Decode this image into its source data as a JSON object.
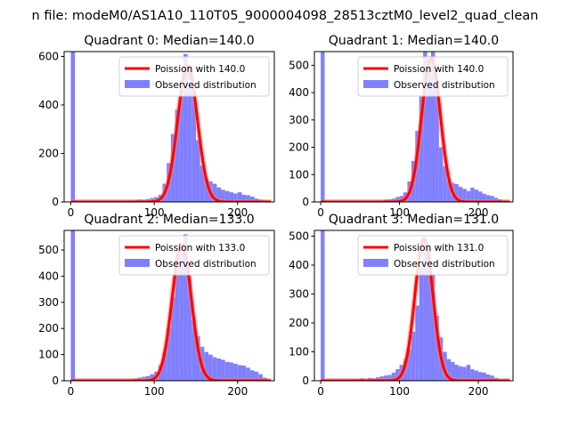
{
  "figure": {
    "suptitle": "n file: modeM0/AS1A10_110T05_9000004098_28513cztM0_level2_quad_clean"
  },
  "colors": {
    "bars": "#8080ff",
    "fit": "#ff0000",
    "fit_halo": "#f08080",
    "axes": "#000000",
    "background": "#ffffff"
  },
  "chart_data": [
    {
      "type": "bar",
      "title": "Quadrant 0: Median=140.0",
      "median": 140.0,
      "xlim": [
        -8,
        244
      ],
      "ylim": [
        0,
        620
      ],
      "xticks": [
        0,
        100,
        200
      ],
      "yticks": [
        0,
        200,
        400,
        600
      ],
      "bin_width": 5,
      "bins": [
        [
          0,
          620
        ],
        [
          70,
          4
        ],
        [
          75,
          6
        ],
        [
          80,
          10
        ],
        [
          85,
          8
        ],
        [
          90,
          12
        ],
        [
          95,
          16
        ],
        [
          100,
          20
        ],
        [
          105,
          30
        ],
        [
          110,
          75
        ],
        [
          115,
          160
        ],
        [
          120,
          280
        ],
        [
          125,
          380
        ],
        [
          130,
          440
        ],
        [
          135,
          610
        ],
        [
          140,
          565
        ],
        [
          145,
          450
        ],
        [
          150,
          255
        ],
        [
          155,
          150
        ],
        [
          160,
          95
        ],
        [
          165,
          85
        ],
        [
          170,
          75
        ],
        [
          175,
          60
        ],
        [
          180,
          50
        ],
        [
          185,
          45
        ],
        [
          190,
          40
        ],
        [
          195,
          35
        ],
        [
          200,
          40
        ],
        [
          205,
          30
        ],
        [
          210,
          28
        ],
        [
          215,
          22
        ],
        [
          220,
          14
        ],
        [
          225,
          10
        ]
      ],
      "fit_peak": 560,
      "fit_x_range": [
        0,
        240
      ],
      "legend": {
        "position": "upper right",
        "entries": [
          "Poission with 140.0",
          "Observed distribution"
        ]
      }
    },
    {
      "type": "bar",
      "title": "Quadrant 1: Median=140.0",
      "median": 140.0,
      "xlim": [
        -8,
        244
      ],
      "ylim": [
        0,
        550
      ],
      "xticks": [
        0,
        100,
        200
      ],
      "yticks": [
        0,
        100,
        200,
        300,
        400,
        500
      ],
      "bin_width": 5,
      "bins": [
        [
          0,
          550
        ],
        [
          70,
          3
        ],
        [
          75,
          5
        ],
        [
          80,
          8
        ],
        [
          85,
          10
        ],
        [
          90,
          12
        ],
        [
          95,
          18
        ],
        [
          100,
          22
        ],
        [
          105,
          35
        ],
        [
          110,
          75
        ],
        [
          115,
          150
        ],
        [
          120,
          260
        ],
        [
          125,
          390
        ],
        [
          130,
          560
        ],
        [
          135,
          505
        ],
        [
          140,
          560
        ],
        [
          145,
          420
        ],
        [
          150,
          200
        ],
        [
          155,
          130
        ],
        [
          160,
          80
        ],
        [
          165,
          70
        ],
        [
          170,
          65
        ],
        [
          175,
          55
        ],
        [
          180,
          48
        ],
        [
          185,
          40
        ],
        [
          190,
          52
        ],
        [
          195,
          45
        ],
        [
          200,
          38
        ],
        [
          205,
          30
        ],
        [
          210,
          25
        ],
        [
          215,
          22
        ],
        [
          220,
          15
        ],
        [
          225,
          10
        ]
      ],
      "fit_peak": 525,
      "fit_x_range": [
        0,
        240
      ],
      "legend": {
        "position": "upper right",
        "entries": [
          "Poission with 140.0",
          "Observed distribution"
        ]
      }
    },
    {
      "type": "bar",
      "title": "Quadrant 2: Median=133.0",
      "median": 133.0,
      "xlim": [
        -8,
        244
      ],
      "ylim": [
        0,
        575
      ],
      "xticks": [
        0,
        100,
        200
      ],
      "yticks": [
        0,
        100,
        200,
        300,
        400,
        500
      ],
      "bin_width": 5,
      "bins": [
        [
          0,
          575
        ],
        [
          70,
          5
        ],
        [
          75,
          8
        ],
        [
          80,
          12
        ],
        [
          85,
          15
        ],
        [
          90,
          18
        ],
        [
          95,
          25
        ],
        [
          100,
          35
        ],
        [
          105,
          60
        ],
        [
          110,
          110
        ],
        [
          115,
          200
        ],
        [
          120,
          320
        ],
        [
          125,
          470
        ],
        [
          130,
          500
        ],
        [
          135,
          560
        ],
        [
          140,
          400
        ],
        [
          145,
          230
        ],
        [
          150,
          170
        ],
        [
          155,
          130
        ],
        [
          160,
          110
        ],
        [
          165,
          100
        ],
        [
          170,
          90
        ],
        [
          175,
          85
        ],
        [
          180,
          80
        ],
        [
          185,
          72
        ],
        [
          190,
          70
        ],
        [
          195,
          65
        ],
        [
          200,
          60
        ],
        [
          205,
          58
        ],
        [
          210,
          50
        ],
        [
          215,
          40
        ],
        [
          220,
          35
        ],
        [
          225,
          25
        ],
        [
          230,
          12
        ]
      ],
      "fit_peak": 520,
      "fit_x_range": [
        0,
        240
      ],
      "legend": {
        "position": "upper right",
        "entries": [
          "Poission with 133.0",
          "Observed distribution"
        ]
      }
    },
    {
      "type": "bar",
      "title": "Quadrant 3: Median=131.0",
      "median": 131.0,
      "xlim": [
        -8,
        244
      ],
      "ylim": [
        0,
        520
      ],
      "xticks": [
        0,
        100,
        200
      ],
      "yticks": [
        0,
        100,
        200,
        300,
        400,
        500
      ],
      "bin_width": 5,
      "bins": [
        [
          0,
          520
        ],
        [
          40,
          5
        ],
        [
          50,
          8
        ],
        [
          60,
          10
        ],
        [
          65,
          8
        ],
        [
          70,
          12
        ],
        [
          75,
          15
        ],
        [
          80,
          18
        ],
        [
          85,
          20
        ],
        [
          90,
          28
        ],
        [
          95,
          40
        ],
        [
          100,
          55
        ],
        [
          105,
          75
        ],
        [
          110,
          110
        ],
        [
          115,
          170
        ],
        [
          120,
          260
        ],
        [
          125,
          400
        ],
        [
          130,
          490
        ],
        [
          135,
          470
        ],
        [
          140,
          370
        ],
        [
          145,
          225
        ],
        [
          150,
          150
        ],
        [
          155,
          100
        ],
        [
          160,
          75
        ],
        [
          165,
          65
        ],
        [
          170,
          55
        ],
        [
          175,
          50
        ],
        [
          180,
          48
        ],
        [
          185,
          55
        ],
        [
          190,
          40
        ],
        [
          195,
          35
        ],
        [
          200,
          30
        ],
        [
          205,
          28
        ],
        [
          210,
          22
        ],
        [
          215,
          18
        ],
        [
          220,
          10
        ]
      ],
      "fit_peak": 490,
      "fit_x_range": [
        0,
        240
      ],
      "legend": {
        "position": "upper right",
        "entries": [
          "Poission with 131.0",
          "Observed distribution"
        ]
      }
    }
  ]
}
